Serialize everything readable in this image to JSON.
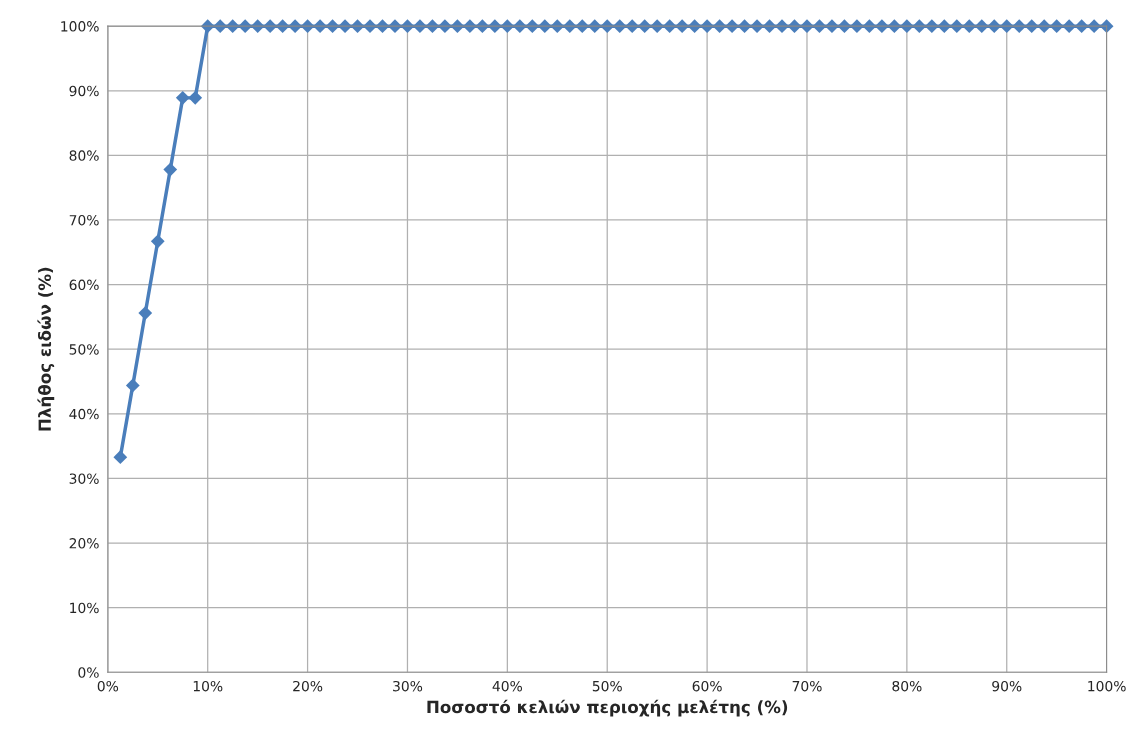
{
  "chart_data": {
    "type": "line",
    "xlabel": "Ποσοστό κελιών περιοχής μελέτης (%)",
    "ylabel": "Πλήθος ειδών (%)",
    "x": [
      1.25,
      2.5,
      3.75,
      5,
      6.25,
      7.5,
      8.75,
      10,
      11.25,
      12.5,
      13.75,
      15,
      16.25,
      17.5,
      18.75,
      20,
      21.25,
      22.5,
      23.75,
      25,
      26.25,
      27.5,
      28.75,
      30,
      31.25,
      32.5,
      33.75,
      35,
      36.25,
      37.5,
      38.75,
      40,
      41.25,
      42.5,
      43.75,
      45,
      46.25,
      47.5,
      48.75,
      50,
      51.25,
      52.5,
      53.75,
      55,
      56.25,
      57.5,
      58.75,
      60,
      61.25,
      62.5,
      63.75,
      65,
      66.25,
      67.5,
      68.75,
      70,
      71.25,
      72.5,
      73.75,
      75,
      76.25,
      77.5,
      78.75,
      80,
      81.25,
      82.5,
      83.75,
      85,
      86.25,
      87.5,
      88.75,
      90,
      91.25,
      92.5,
      93.75,
      95,
      96.25,
      97.5,
      98.75,
      100
    ],
    "series": [
      {
        "color": "#4a7ebb",
        "values": [
          33.3,
          44.4,
          55.6,
          66.7,
          77.8,
          88.9,
          88.9,
          100,
          100,
          100,
          100,
          100,
          100,
          100,
          100,
          100,
          100,
          100,
          100,
          100,
          100,
          100,
          100,
          100,
          100,
          100,
          100,
          100,
          100,
          100,
          100,
          100,
          100,
          100,
          100,
          100,
          100,
          100,
          100,
          100,
          100,
          100,
          100,
          100,
          100,
          100,
          100,
          100,
          100,
          100,
          100,
          100,
          100,
          100,
          100,
          100,
          100,
          100,
          100,
          100,
          100,
          100,
          100,
          100,
          100,
          100,
          100,
          100,
          100,
          100,
          100,
          100,
          100,
          100,
          100,
          100,
          100,
          100,
          100,
          100
        ]
      }
    ],
    "xlim": [
      0,
      100
    ],
    "ylim": [
      0,
      100
    ],
    "xticks": [
      {
        "value": 0,
        "label": "0%"
      },
      {
        "value": 10,
        "label": "10%"
      },
      {
        "value": 20,
        "label": "20%"
      },
      {
        "value": 30,
        "label": "30%"
      },
      {
        "value": 40,
        "label": "40%"
      },
      {
        "value": 50,
        "label": "50%"
      },
      {
        "value": 60,
        "label": "60%"
      },
      {
        "value": 70,
        "label": "70%"
      },
      {
        "value": 80,
        "label": "80%"
      },
      {
        "value": 90,
        "label": "90%"
      },
      {
        "value": 100,
        "label": "100%"
      }
    ],
    "yticks": [
      {
        "value": 0,
        "label": "0%"
      },
      {
        "value": 10,
        "label": "10%"
      },
      {
        "value": 20,
        "label": "20%"
      },
      {
        "value": 30,
        "label": "30%"
      },
      {
        "value": 40,
        "label": "40%"
      },
      {
        "value": 50,
        "label": "50%"
      },
      {
        "value": 60,
        "label": "60%"
      },
      {
        "value": 70,
        "label": "70%"
      },
      {
        "value": 80,
        "label": "80%"
      },
      {
        "value": 90,
        "label": "90%"
      },
      {
        "value": 100,
        "label": "100%"
      }
    ],
    "grid": true,
    "marker": "diamond",
    "line_style": "solid"
  }
}
